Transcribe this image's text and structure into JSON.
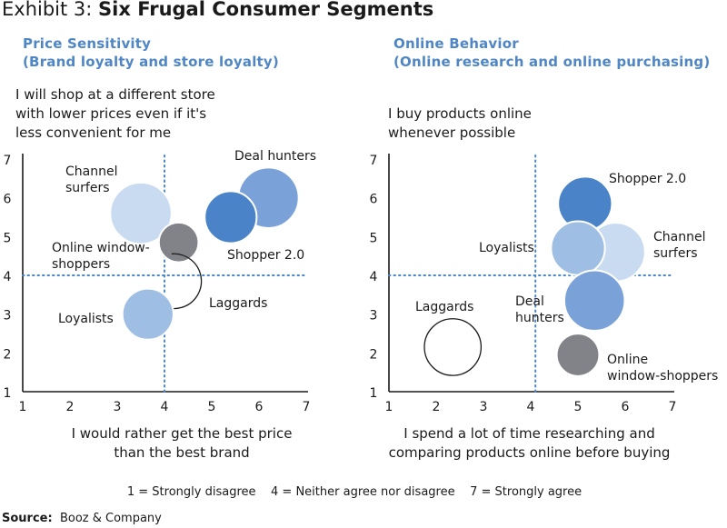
{
  "header": {
    "exhibit_prefix": "Exhibit 3: ",
    "exhibit_title": "Six Frugal Consumer Segments"
  },
  "legend_text": "1 = Strongly disagree    4 = Neither agree nor disagree    7 = Strongly agree",
  "source": {
    "label": "Source:",
    "value": "Booz & Company"
  },
  "colors": {
    "title_blue": "#4f86c6",
    "dotted_line": "#4a86c8"
  },
  "chart_data": [
    {
      "type": "scatter",
      "title_line1": "Price Sensitivity",
      "title_line2": "(Brand loyalty and store loyalty)",
      "ylabel_line1": "I will shop at a different store",
      "ylabel_line2": "with lower prices even if it's",
      "ylabel_line3": "less convenient for me",
      "xlabel_line1": "I would rather get the best price",
      "xlabel_line2": "than the best brand",
      "xlim": [
        1,
        7
      ],
      "ylim": [
        1,
        7
      ],
      "xticks": [
        1,
        2,
        3,
        4,
        5,
        6,
        7
      ],
      "yticks": [
        1,
        2,
        3,
        4,
        5,
        6,
        7
      ],
      "reference_lines": {
        "x": 4,
        "y": 4
      },
      "segments": [
        {
          "name": "Channel surfers",
          "label_lines": [
            "Channel",
            "surfers"
          ],
          "x": 3.5,
          "y": 5.6,
          "size": 0.65,
          "color": "#c9dbf0",
          "style": "filled"
        },
        {
          "name": "Deal hunters",
          "label_lines": [
            "Deal hunters"
          ],
          "x": 6.2,
          "y": 6.0,
          "size": 0.64,
          "color": "#7aa1d8",
          "style": "filled"
        },
        {
          "name": "Shopper 2.0",
          "label_lines": [
            "Shopper 2.0"
          ],
          "x": 5.4,
          "y": 5.5,
          "size": 0.55,
          "color": "#4a83c8",
          "style": "filled"
        },
        {
          "name": "Online window-shoppers",
          "label_lines": [
            "Online window-",
            "shoppers"
          ],
          "x": 4.3,
          "y": 4.85,
          "size": 0.42,
          "color": "#818388",
          "style": "filled"
        },
        {
          "name": "Laggards",
          "label_lines": [
            "Laggards"
          ],
          "x": 4.2,
          "y": 3.85,
          "size": 0.58,
          "color": "#1a1a1a",
          "style": "arc"
        },
        {
          "name": "Loyalists",
          "label_lines": [
            "Loyalists"
          ],
          "x": 3.65,
          "y": 3.0,
          "size": 0.54,
          "color": "#9ebee4",
          "style": "filled"
        }
      ]
    },
    {
      "type": "scatter",
      "title_line1": "Online Behavior",
      "title_line2": "(Online research and online purchasing)",
      "ylabel_line1": "I buy products online",
      "ylabel_line2": "whenever possible",
      "xlabel_line1": "I spend a lot of time researching and",
      "xlabel_line2": "comparing products online before buying",
      "xlim": [
        1,
        7
      ],
      "ylim": [
        1,
        7
      ],
      "xticks": [
        1,
        2,
        3,
        4,
        5,
        6,
        7
      ],
      "yticks": [
        1,
        2,
        3,
        4,
        5,
        6,
        7
      ],
      "reference_lines": {
        "x": 4.1,
        "y": 4
      },
      "segments": [
        {
          "name": "Shopper 2.0",
          "label_lines": [
            "Shopper 2.0"
          ],
          "x": 5.15,
          "y": 5.85,
          "size": 0.57,
          "color": "#4a83c8",
          "style": "filled"
        },
        {
          "name": "Channel surfers",
          "label_lines": [
            "Channel",
            "surfers"
          ],
          "x": 5.8,
          "y": 4.6,
          "size": 0.62,
          "color": "#c9dbf0",
          "style": "filled"
        },
        {
          "name": "Loyalists",
          "label_lines": [
            "Loyalists"
          ],
          "x": 5.0,
          "y": 4.7,
          "size": 0.57,
          "color": "#9ebee4",
          "style": "filled"
        },
        {
          "name": "Deal hunters",
          "label_lines": [
            "Deal",
            "hunters"
          ],
          "x": 5.35,
          "y": 3.35,
          "size": 0.64,
          "color": "#7aa1d8",
          "style": "filled"
        },
        {
          "name": "Online window-shoppers",
          "label_lines": [
            "Online",
            "window-shoppers"
          ],
          "x": 5.0,
          "y": 1.95,
          "size": 0.45,
          "color": "#818388",
          "style": "filled"
        },
        {
          "name": "Laggards",
          "label_lines": [
            "Laggards"
          ],
          "x": 2.35,
          "y": 2.15,
          "size": 0.6,
          "color": "#1a1a1a",
          "style": "outline"
        }
      ]
    }
  ]
}
